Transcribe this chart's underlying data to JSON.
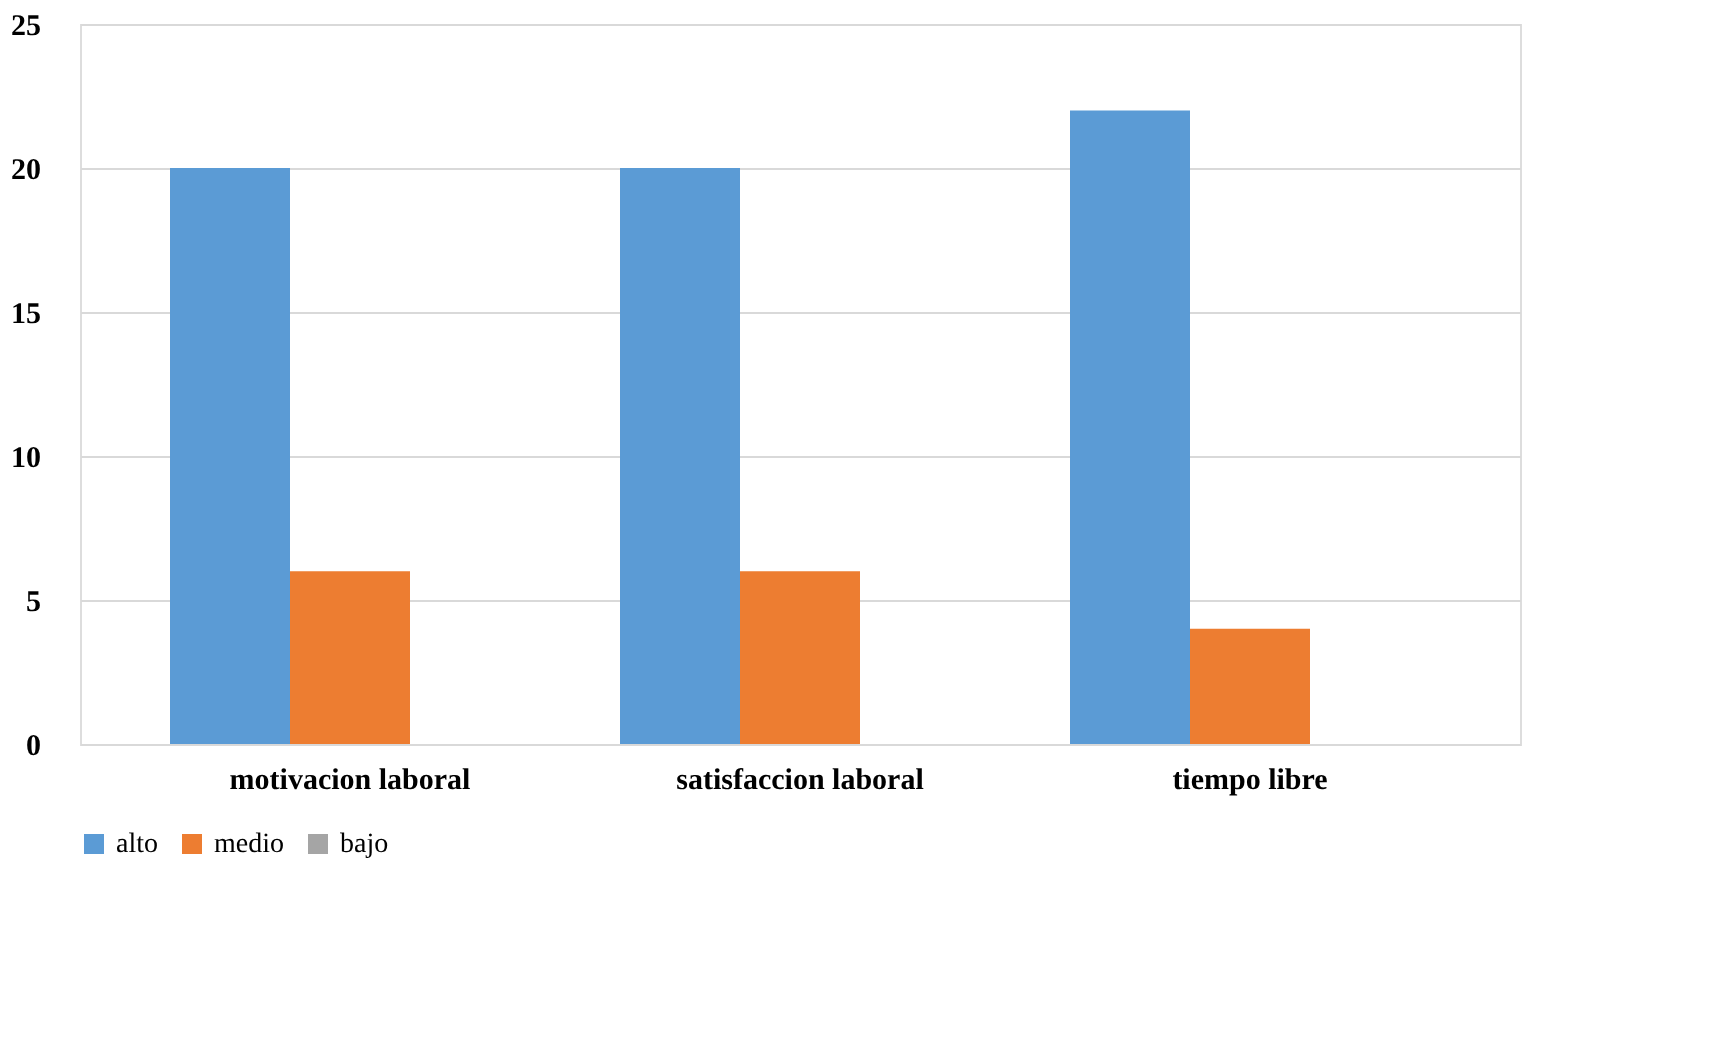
{
  "chart_data": {
    "type": "bar",
    "categories": [
      "motivacion laboral",
      "satisfaccion laboral",
      "tiempo libre"
    ],
    "series": [
      {
        "name": "alto",
        "color": "#5b9bd5",
        "values": [
          20,
          20,
          22
        ]
      },
      {
        "name": "medio",
        "color": "#ed7d31",
        "values": [
          6,
          6,
          4
        ]
      },
      {
        "name": "bajo",
        "color": "#a5a5a5",
        "values": [
          0,
          0,
          0
        ]
      }
    ],
    "ylim": [
      0,
      25
    ],
    "yticks": [
      0,
      5,
      10,
      15,
      20,
      25
    ],
    "grid": "y",
    "legend": "bottom"
  }
}
